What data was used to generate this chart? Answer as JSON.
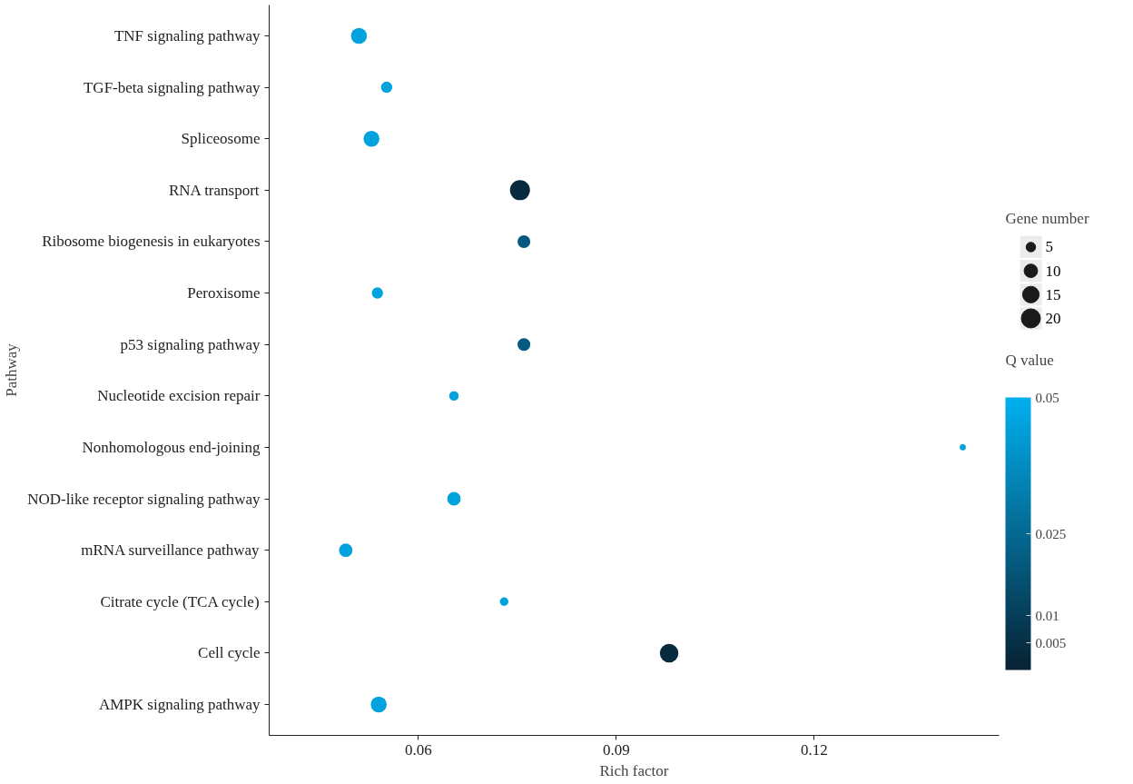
{
  "chart_data": {
    "type": "bubble",
    "orientation": "horizontal",
    "xlabel": "Rich factor",
    "ylabel": "Pathway",
    "categories": [
      "TNF signaling pathway",
      "TGF-beta signaling pathway",
      "Spliceosome",
      "RNA transport",
      "Ribosome biogenesis in eukaryotes",
      "Peroxisome",
      "p53 signaling pathway",
      "Nucleotide excision repair",
      "Nonhomologous end-joining",
      "NOD-like receptor signaling pathway",
      "mRNA surveillance pathway",
      "Citrate cycle (TCA cycle)",
      "Cell cycle",
      "AMPK signaling pathway"
    ],
    "values": [
      0.051,
      0.0552,
      0.0529,
      0.0754,
      0.076,
      0.0538,
      0.076,
      0.0654,
      0.1425,
      0.0654,
      0.049,
      0.073,
      0.098,
      0.054
    ],
    "sizes": [
      14,
      7,
      14,
      22,
      9,
      7,
      9,
      5,
      2,
      10,
      10,
      4,
      19,
      14
    ],
    "cvalues": [
      0.045,
      0.045,
      0.045,
      0.003,
      0.02,
      0.045,
      0.02,
      0.045,
      0.045,
      0.045,
      0.045,
      0.045,
      0.003,
      0.045
    ],
    "size_legend": [
      5,
      10,
      15,
      20
    ],
    "legend_title": "Gene number",
    "clabel": "Q value",
    "clim": [
      0,
      0.05
    ],
    "cticks": [
      0.005,
      0.01,
      0.025,
      0.05
    ],
    "xlim": [
      0.0374,
      0.148
    ],
    "xticks": [
      0.06,
      0.09,
      0.12
    ]
  }
}
